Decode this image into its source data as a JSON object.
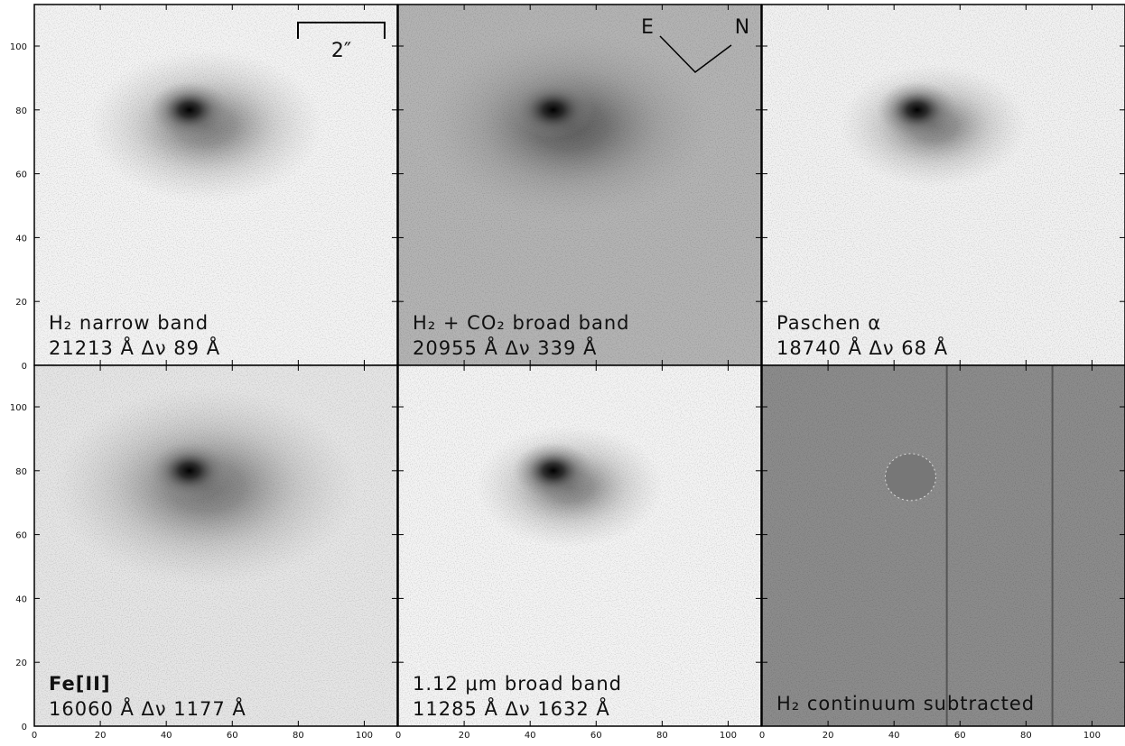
{
  "axes": {
    "xlim": [
      0,
      110
    ],
    "ylim": [
      0,
      113
    ],
    "xticks": [
      0,
      20,
      40,
      60,
      80,
      100
    ],
    "yticks": [
      0,
      20,
      40,
      60,
      80,
      100
    ]
  },
  "panels": [
    {
      "title": "H₂ narrow band",
      "subtitle": "21213 Å  Δν  89 Å"
    },
    {
      "title": "H₂ + CO₂ broad band",
      "subtitle": "20955 Å  Δν  339 Å"
    },
    {
      "title": "Paschen α",
      "subtitle": "18740 Å  Δν  68 Å"
    },
    {
      "title": "Fe[II]",
      "subtitle": "16060 Å  Δν  1177 Å"
    },
    {
      "title": "1.12 μm broad band",
      "subtitle": "11285 Å  Δν  1632 Å"
    },
    {
      "title": "H₂ continuum subtracted"
    }
  ],
  "scale_bar": "2″",
  "compass": {
    "east": "E",
    "north": "N"
  }
}
